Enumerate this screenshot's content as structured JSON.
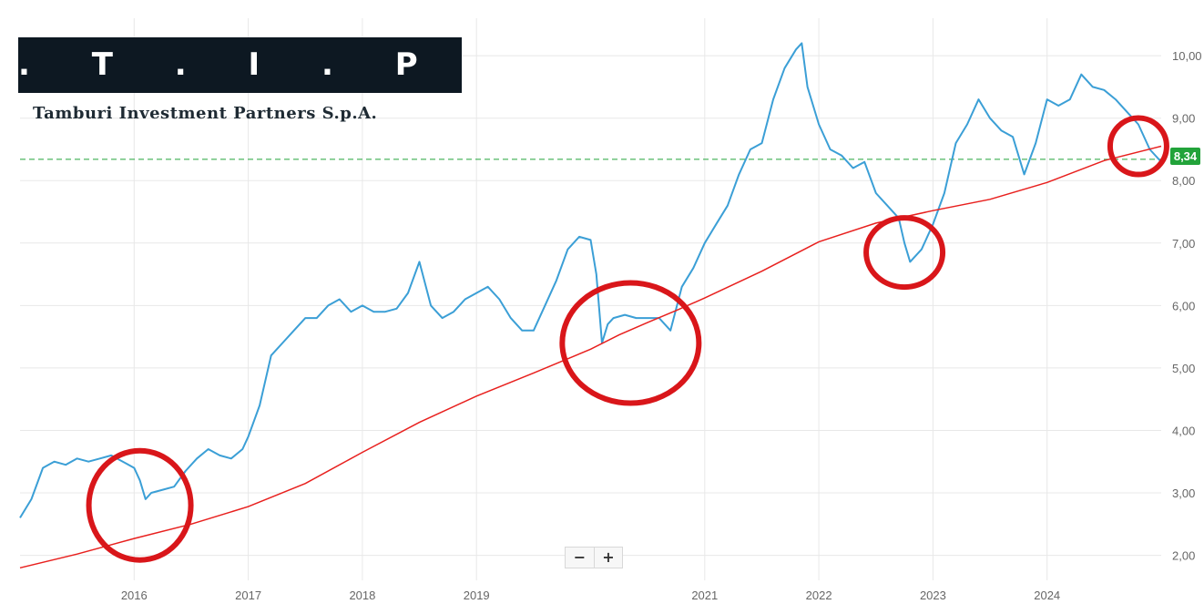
{
  "logo": {
    "mark": ". T . I . P .",
    "company": "Tamburi Investment Partners S.p.A."
  },
  "controls": {
    "zoom_out": "−",
    "zoom_in": "+"
  },
  "last_price_label": "8,34",
  "colors": {
    "price": "#3b9fd6",
    "average": "#e8201e",
    "reference": "#22a33a",
    "highlight": "#d9161a",
    "grid": "#e8e8e8"
  },
  "chart_data": {
    "type": "line",
    "title": "",
    "xlabel": "",
    "ylabel": "",
    "ylim": [
      1.6,
      10.6
    ],
    "xlim": [
      2015.0,
      2025.0
    ],
    "grid": true,
    "x_ticks": [
      {
        "x": 2016.0,
        "label": "2016"
      },
      {
        "x": 2017.0,
        "label": "2017"
      },
      {
        "x": 2018.0,
        "label": "2018"
      },
      {
        "x": 2019.0,
        "label": "2019"
      },
      {
        "x": 2021.0,
        "label": "2021"
      },
      {
        "x": 2022.0,
        "label": "2022"
      },
      {
        "x": 2023.0,
        "label": "2023"
      },
      {
        "x": 2024.0,
        "label": "2024"
      }
    ],
    "y_ticks": [
      {
        "y": 2.0,
        "label": "2,00"
      },
      {
        "y": 3.0,
        "label": "3,00"
      },
      {
        "y": 4.0,
        "label": "4,00"
      },
      {
        "y": 5.0,
        "label": "5,00"
      },
      {
        "y": 6.0,
        "label": "6,00"
      },
      {
        "y": 7.0,
        "label": "7,00"
      },
      {
        "y": 8.0,
        "label": "8,00"
      },
      {
        "y": 9.0,
        "label": "9,00"
      },
      {
        "y": 10.0,
        "label": "10,00"
      }
    ],
    "series": [
      {
        "type": "line",
        "x": [
          2015.0,
          2015.1,
          2015.2,
          2015.3,
          2015.4,
          2015.5,
          2015.6,
          2015.7,
          2015.8,
          2015.9,
          2016.0,
          2016.05,
          2016.1,
          2016.15,
          2016.25,
          2016.35,
          2016.45,
          2016.55,
          2016.65,
          2016.75,
          2016.85,
          2016.95,
          2017.0,
          2017.1,
          2017.2,
          2017.3,
          2017.4,
          2017.5,
          2017.6,
          2017.7,
          2017.8,
          2017.9,
          2018.0,
          2018.1,
          2018.2,
          2018.3,
          2018.4,
          2018.5,
          2018.6,
          2018.7,
          2018.8,
          2018.9,
          2019.0,
          2019.1,
          2019.2,
          2019.3,
          2019.4,
          2019.5,
          2019.6,
          2019.7,
          2019.8,
          2019.9,
          2020.0,
          2020.05,
          2020.1,
          2020.15,
          2020.2,
          2020.3,
          2020.4,
          2020.5,
          2020.6,
          2020.7,
          2020.8,
          2020.9,
          2021.0,
          2021.1,
          2021.2,
          2021.3,
          2021.4,
          2021.5,
          2021.6,
          2021.7,
          2021.8,
          2021.85,
          2021.9,
          2022.0,
          2022.1,
          2022.2,
          2022.3,
          2022.4,
          2022.5,
          2022.6,
          2022.7,
          2022.75,
          2022.8,
          2022.9,
          2023.0,
          2023.1,
          2023.2,
          2023.3,
          2023.4,
          2023.5,
          2023.6,
          2023.7,
          2023.8,
          2023.9,
          2024.0,
          2024.1,
          2024.2,
          2024.3,
          2024.4,
          2024.5,
          2024.6,
          2024.7,
          2024.8,
          2024.9,
          2025.0
        ],
        "values": [
          2.6,
          2.9,
          3.4,
          3.5,
          3.45,
          3.55,
          3.5,
          3.55,
          3.6,
          3.5,
          3.4,
          3.2,
          2.9,
          3.0,
          3.05,
          3.1,
          3.35,
          3.55,
          3.7,
          3.6,
          3.55,
          3.7,
          3.9,
          4.4,
          5.2,
          5.4,
          5.6,
          5.8,
          5.8,
          6.0,
          6.1,
          5.9,
          6.0,
          5.9,
          5.9,
          5.95,
          6.2,
          6.7,
          6.0,
          5.8,
          5.9,
          6.1,
          6.2,
          6.3,
          6.1,
          5.8,
          5.6,
          5.6,
          6.0,
          6.4,
          6.9,
          7.1,
          7.05,
          6.5,
          5.4,
          5.7,
          5.8,
          5.85,
          5.8,
          5.8,
          5.8,
          5.6,
          6.3,
          6.6,
          7.0,
          7.3,
          7.6,
          8.1,
          8.5,
          8.6,
          9.3,
          9.8,
          10.1,
          10.2,
          9.5,
          8.9,
          8.5,
          8.4,
          8.2,
          8.3,
          7.8,
          7.6,
          7.4,
          7.0,
          6.7,
          6.9,
          7.3,
          7.8,
          8.6,
          8.9,
          9.3,
          9.0,
          8.8,
          8.7,
          8.1,
          8.6,
          9.3,
          9.2,
          9.3,
          9.7,
          9.5,
          9.45,
          9.3,
          9.1,
          8.9,
          8.5,
          8.3
        ]
      },
      {
        "type": "line",
        "x": [
          2015.0,
          2015.5,
          2016.0,
          2016.5,
          2017.0,
          2017.5,
          2018.0,
          2018.5,
          2019.0,
          2019.5,
          2020.0,
          2020.25,
          2020.5,
          2020.75,
          2021.0,
          2021.5,
          2022.0,
          2022.5,
          2023.0,
          2023.5,
          2024.0,
          2024.5,
          2025.0
        ],
        "values": [
          1.8,
          2.02,
          2.27,
          2.5,
          2.78,
          3.15,
          3.65,
          4.13,
          4.55,
          4.92,
          5.3,
          5.53,
          5.73,
          5.92,
          6.12,
          6.55,
          7.02,
          7.32,
          7.52,
          7.7,
          7.97,
          8.32,
          8.55
        ]
      }
    ],
    "reference_line": {
      "y": 8.34,
      "style": "dashed"
    },
    "highlights": [
      {
        "x": 2016.05,
        "y": 2.8
      },
      {
        "x": 2020.35,
        "y": 5.4
      },
      {
        "x": 2022.75,
        "y": 6.85
      },
      {
        "x": 2024.8,
        "y": 8.55
      }
    ]
  }
}
